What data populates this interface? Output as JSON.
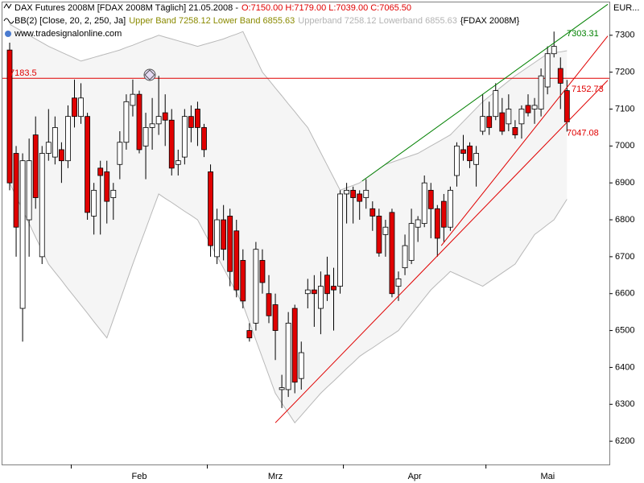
{
  "chart_data": {
    "type": "candlestick",
    "title": "DAX Futures 2008M [FDAX 2008M  Täglich] 21.05.2008 -",
    "ohlc_text": "O:7150.00 H:7179.00 L:7039.00 C:7065.50",
    "indicator": "BB(2) [Close, 20, 2, 250, Ja]",
    "band_text": "Upper Band 7258.12 Lower Band 6855.63",
    "band_text_2": "Upperband 7258.12 Lowerband 6855.63",
    "symbol": "{FDAX 2008M}",
    "watermark": "www.tradesignalonline.com",
    "currency": "EUR...",
    "up_color": "#ffffff",
    "down_color": "#e00000",
    "ohlc": [
      [
        7260,
        7280,
        6880,
        6900
      ],
      [
        6980,
        7000,
        6700,
        6780
      ],
      [
        6560,
        6980,
        6470,
        6960
      ],
      [
        6800,
        7020,
        6700,
        6960
      ],
      [
        7030,
        7080,
        6830,
        6860
      ],
      [
        6700,
        7000,
        6680,
        6980
      ],
      [
        6980,
        7100,
        6960,
        7010
      ],
      [
        6970,
        7080,
        6950,
        7050
      ],
      [
        6990,
        7010,
        6900,
        6960
      ],
      [
        6960,
        7110,
        6940,
        7080
      ],
      [
        7130,
        7180,
        7050,
        7080
      ],
      [
        7080,
        7170,
        7060,
        7130
      ],
      [
        7080,
        7090,
        6800,
        6820
      ],
      [
        6810,
        6900,
        6760,
        6880
      ],
      [
        6940,
        6960,
        6760,
        6920
      ],
      [
        6930,
        6960,
        6790,
        6850
      ],
      [
        6860,
        6900,
        6800,
        6880
      ],
      [
        6950,
        7040,
        6910,
        7010
      ],
      [
        7010,
        7140,
        6990,
        7120
      ],
      [
        7110,
        7180,
        7080,
        7140
      ],
      [
        7140,
        7150,
        6980,
        6990
      ],
      [
        7000,
        7090,
        6910,
        7050
      ],
      [
        7050,
        7130,
        6990,
        7060
      ],
      [
        7060,
        7190,
        7030,
        7080
      ],
      [
        7090,
        7140,
        7000,
        7070
      ],
      [
        7070,
        7100,
        6920,
        6940
      ],
      [
        6950,
        6990,
        6920,
        6960
      ],
      [
        6970,
        7100,
        6950,
        7080
      ],
      [
        7080,
        7110,
        7010,
        7050
      ],
      [
        7100,
        7120,
        7000,
        7050
      ],
      [
        7050,
        7060,
        6970,
        6990
      ],
      [
        6930,
        6950,
        6700,
        6730
      ],
      [
        6700,
        6830,
        6680,
        6800
      ],
      [
        6800,
        6840,
        6690,
        6720
      ],
      [
        6810,
        6830,
        6620,
        6660
      ],
      [
        6770,
        6800,
        6590,
        6610
      ],
      [
        6690,
        6720,
        6560,
        6580
      ],
      [
        6500,
        6520,
        6470,
        6480
      ],
      [
        6520,
        6740,
        6500,
        6720
      ],
      [
        6690,
        6720,
        6600,
        6630
      ],
      [
        6600,
        6650,
        6520,
        6540
      ],
      [
        6570,
        6600,
        6420,
        6500
      ],
      [
        6340,
        6380,
        6290,
        6345
      ],
      [
        6340,
        6550,
        6320,
        6520
      ],
      [
        6560,
        6570,
        6330,
        6360
      ],
      [
        6370,
        6470,
        6340,
        6440
      ],
      [
        6600,
        6640,
        6560,
        6610
      ],
      [
        6610,
        6650,
        6510,
        6600
      ],
      [
        6560,
        6660,
        6490,
        6620
      ],
      [
        6650,
        6700,
        6580,
        6600
      ],
      [
        6620,
        6670,
        6500,
        6610
      ],
      [
        6620,
        6880,
        6600,
        6870
      ],
      [
        6870,
        6900,
        6790,
        6880
      ],
      [
        6880,
        6890,
        6790,
        6860
      ],
      [
        6870,
        6880,
        6800,
        6850
      ],
      [
        6860,
        6910,
        6830,
        6880
      ],
      [
        6830,
        6850,
        6770,
        6810
      ],
      [
        6810,
        6830,
        6700,
        6710
      ],
      [
        6760,
        6800,
        6700,
        6780
      ],
      [
        6820,
        6830,
        6590,
        6600
      ],
      [
        6620,
        6660,
        6580,
        6640
      ],
      [
        6670,
        6760,
        6650,
        6730
      ],
      [
        6690,
        6830,
        6680,
        6790
      ],
      [
        6780,
        6810,
        6740,
        6800
      ],
      [
        6790,
        6920,
        6780,
        6900
      ],
      [
        6880,
        6900,
        6750,
        6830
      ],
      [
        6830,
        6840,
        6700,
        6750
      ],
      [
        6850,
        6870,
        6740,
        6780
      ],
      [
        6780,
        6890,
        6770,
        6880
      ],
      [
        6920,
        7010,
        6890,
        7000
      ],
      [
        6990,
        7030,
        6960,
        6980
      ],
      [
        7000,
        7010,
        6940,
        6960
      ],
      [
        6950,
        7000,
        6890,
        6980
      ],
      [
        7040,
        7140,
        7030,
        7080
      ],
      [
        7080,
        7120,
        7030,
        7050
      ],
      [
        7080,
        7170,
        7070,
        7150
      ],
      [
        7090,
        7130,
        7030,
        7040
      ],
      [
        7060,
        7140,
        7040,
        7100
      ],
      [
        7050,
        7070,
        7020,
        7030
      ],
      [
        7060,
        7110,
        7020,
        7100
      ],
      [
        7110,
        7140,
        7080,
        7090
      ],
      [
        7100,
        7130,
        7060,
        7110
      ],
      [
        7100,
        7210,
        7080,
        7190
      ],
      [
        7160,
        7270,
        7140,
        7250
      ],
      [
        7250,
        7310,
        7240,
        7270
      ],
      [
        7210,
        7240,
        7100,
        7170
      ],
      [
        7150,
        7179,
        7039,
        7065.5
      ]
    ],
    "bands": [
      {
        "color": "#b8b8b8",
        "values": [
          7330,
          7320,
          7310,
          7300,
          7290,
          7280,
          7270,
          7262,
          7254,
          7246,
          7238,
          7230,
          7235,
          7240,
          7245,
          7250,
          7255,
          7260,
          7267,
          7273,
          7280,
          7287,
          7293,
          7300,
          7295,
          7290,
          7285,
          7280,
          7275,
          7270,
          7275,
          7280,
          7285,
          7290,
          7297,
          7303,
          7310,
          7273,
          7237,
          7200,
          7179,
          7157,
          7136,
          7114,
          7093,
          7071,
          7050,
          7016,
          6982,
          6948,
          6914,
          6880,
          6887,
          6893,
          6900,
          6913,
          6925,
          6938,
          6950,
          6956,
          6962,
          6968,
          6974,
          6980,
          6990,
          7000,
          7010,
          7020,
          7030,
          7048,
          7066,
          7084,
          7102,
          7120,
          7134,
          7148,
          7162,
          7176,
          7190,
          7202,
          7214,
          7226,
          7238,
          7250,
          7253,
          7255,
          7258.12
        ]
      },
      {
        "color": "#b8b8b8",
        "values": [
          6900,
          6863,
          6827,
          6790,
          6753,
          6717,
          6680,
          6658,
          6636,
          6613,
          6591,
          6569,
          6547,
          6524,
          6502,
          6480,
          6530,
          6580,
          6630,
          6680,
          6728,
          6775,
          6823,
          6870,
          6858,
          6847,
          6835,
          6823,
          6812,
          6800,
          6767,
          6734,
          6701,
          6669,
          6636,
          6603,
          6570,
          6522,
          6474,
          6426,
          6378,
          6330,
          6303,
          6277,
          6250,
          6270,
          6290,
          6310,
          6330,
          6347,
          6363,
          6380,
          6397,
          6413,
          6430,
          6442,
          6453,
          6465,
          6477,
          6488,
          6500,
          6522,
          6544,
          6566,
          6588,
          6610,
          6627,
          6643,
          6660,
          6652,
          6644,
          6636,
          6628,
          6620,
          6632,
          6644,
          6656,
          6668,
          6680,
          6707,
          6733,
          6760,
          6773,
          6787,
          6800,
          6828,
          6855.63
        ]
      }
    ],
    "band_fill": "#f5f5f5",
    "ylim": [
      6137,
      7389
    ],
    "yticks": [
      6200,
      6300,
      6400,
      6500,
      6600,
      6700,
      6800,
      6900,
      7000,
      7100,
      7200,
      7300
    ],
    "xticks": [
      {
        "value": 9.5,
        "label": "Feb"
      },
      {
        "value": 30.5,
        "label": "Mrz"
      },
      {
        "value": 51.5,
        "label": "Apr"
      },
      {
        "value": 73.5,
        "label": "Mai"
      }
    ],
    "hline": {
      "value": 7183.5,
      "color": "#e00000"
    },
    "trendlines": [
      {
        "start": [
          54.4,
          6905
        ],
        "end": [
          92.3,
          7384
        ],
        "color": "#008000",
        "label": 7303.31
      },
      {
        "start": [
          66.6,
          6730
        ],
        "end": [
          92.3,
          7298
        ],
        "color": "#e00000",
        "label": 7152.73
      },
      {
        "start": [
          41.0,
          6250
        ],
        "end": [
          92.3,
          7178
        ],
        "color": "#e00000",
        "label": 7047.08
      }
    ]
  }
}
